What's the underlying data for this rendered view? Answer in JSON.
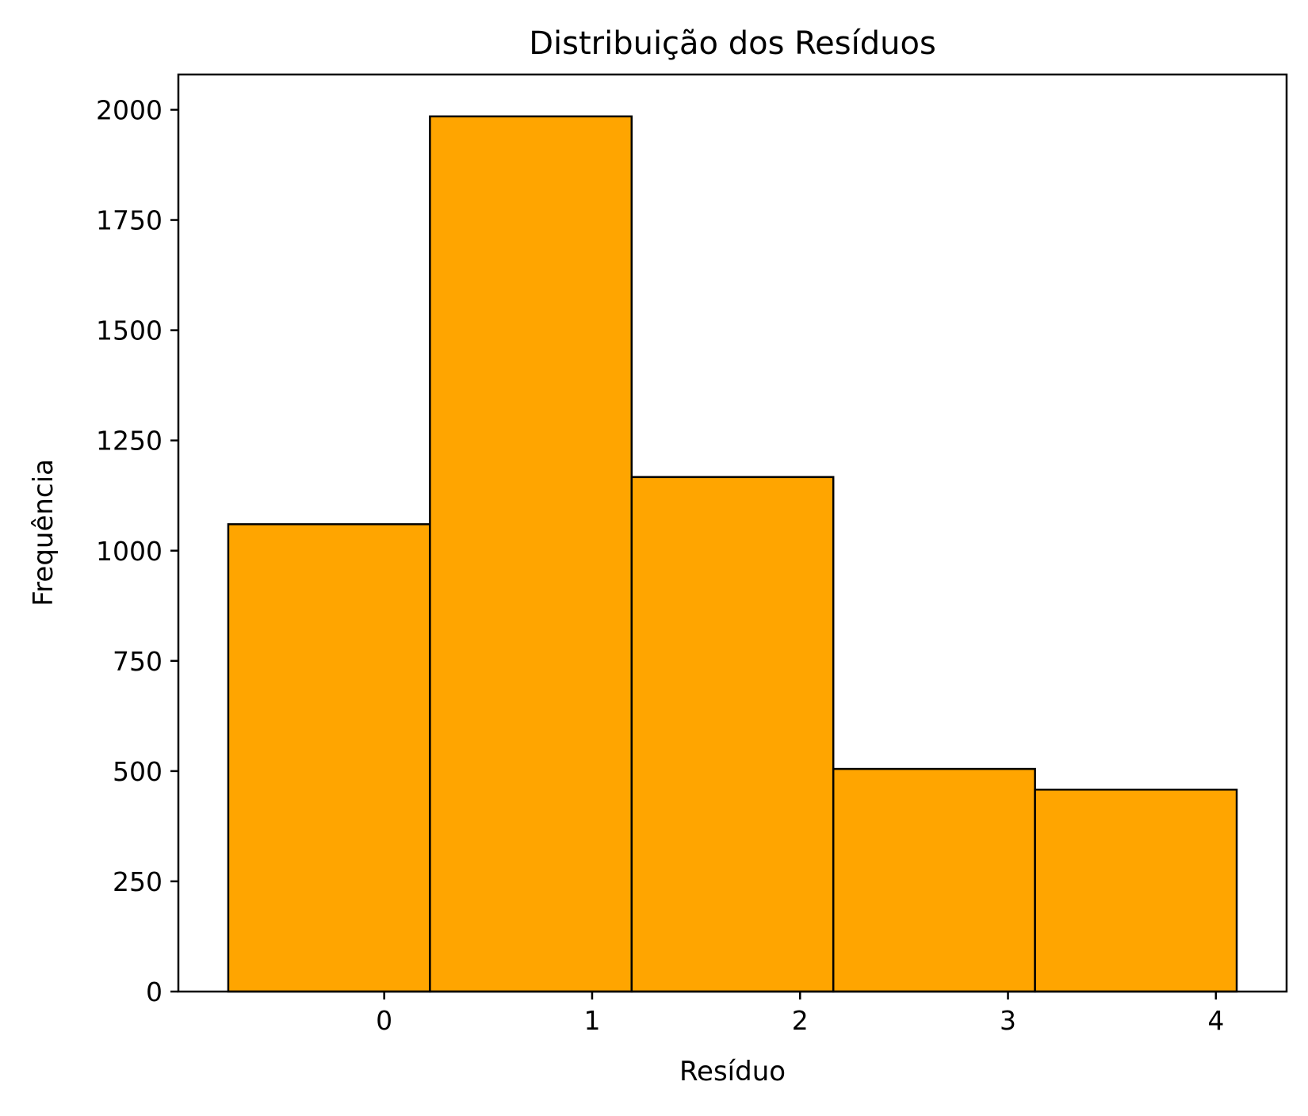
{
  "chart_data": {
    "type": "bar",
    "title": "Distribuição dos Resíduos",
    "xlabel": "Resíduo",
    "ylabel": "Frequência",
    "bins": [
      {
        "start": -0.75,
        "end": 0.22,
        "count": 1060
      },
      {
        "start": 0.22,
        "end": 1.19,
        "count": 1985
      },
      {
        "start": 1.19,
        "end": 2.16,
        "count": 1167
      },
      {
        "start": 2.16,
        "end": 3.13,
        "count": 505
      },
      {
        "start": 3.13,
        "end": 4.1,
        "count": 458
      }
    ],
    "xlim": [
      -0.99,
      4.34
    ],
    "ylim": [
      0,
      2080
    ],
    "xticks": [
      0,
      1,
      2,
      3,
      4
    ],
    "xtick_labels": [
      "0",
      "1",
      "2",
      "3",
      "4"
    ],
    "yticks": [
      0,
      250,
      500,
      750,
      1000,
      1250,
      1500,
      1750,
      2000
    ],
    "ytick_labels": [
      "0",
      "250",
      "500",
      "750",
      "1000",
      "1250",
      "1500",
      "1750",
      "2000"
    ],
    "bar_color": "#FFA500",
    "edge_color": "#000000",
    "grid": false
  }
}
